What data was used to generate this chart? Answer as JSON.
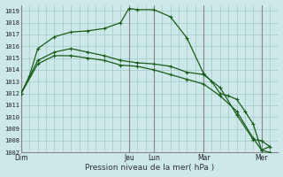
{
  "title": "",
  "xlabel": "Pression niveau de la mer( hPa )",
  "ylabel": "",
  "bg_color": "#cce8e8",
  "grid_color": "#aacccc",
  "line_color": "#1a5c1a",
  "ylim": [
    1007,
    1019.5
  ],
  "yticks": [
    1007,
    1008,
    1009,
    1010,
    1011,
    1012,
    1013,
    1014,
    1015,
    1016,
    1017,
    1018,
    1019
  ],
  "day_labels": [
    "Dim",
    "Jeu",
    "Lun",
    "Mar",
    "Mer"
  ],
  "day_positions": [
    0,
    13,
    16,
    22,
    29
  ],
  "xlim": [
    0,
    31
  ],
  "lines": [
    {
      "x": [
        0,
        1,
        2,
        4,
        6,
        8,
        10,
        12,
        13,
        14,
        16,
        18,
        20,
        22,
        23,
        24,
        25,
        26,
        27,
        28,
        29,
        30
      ],
      "y": [
        1012.0,
        1013.5,
        1015.8,
        1016.8,
        1017.2,
        1017.3,
        1017.5,
        1018.0,
        1019.2,
        1019.1,
        1019.1,
        1018.5,
        1016.7,
        1013.7,
        1013.0,
        1012.0,
        1011.8,
        1011.5,
        1010.5,
        1009.4,
        1007.2,
        1007.5
      ]
    },
    {
      "x": [
        0,
        2,
        4,
        6,
        8,
        10,
        12,
        14,
        16,
        18,
        20,
        22,
        24,
        26,
        28,
        29,
        30
      ],
      "y": [
        1012.0,
        1014.8,
        1015.5,
        1015.8,
        1015.5,
        1015.2,
        1014.8,
        1014.6,
        1014.5,
        1014.3,
        1013.8,
        1013.6,
        1012.5,
        1010.2,
        1008.1,
        1008.0,
        1007.5
      ]
    },
    {
      "x": [
        0,
        2,
        4,
        6,
        8,
        10,
        12,
        14,
        16,
        18,
        20,
        22,
        24,
        26,
        28,
        29,
        30
      ],
      "y": [
        1012.0,
        1014.5,
        1015.2,
        1015.2,
        1015.0,
        1014.8,
        1014.4,
        1014.3,
        1014.0,
        1013.6,
        1013.2,
        1012.8,
        1011.8,
        1010.5,
        1008.2,
        1007.2,
        1007.0
      ]
    }
  ]
}
